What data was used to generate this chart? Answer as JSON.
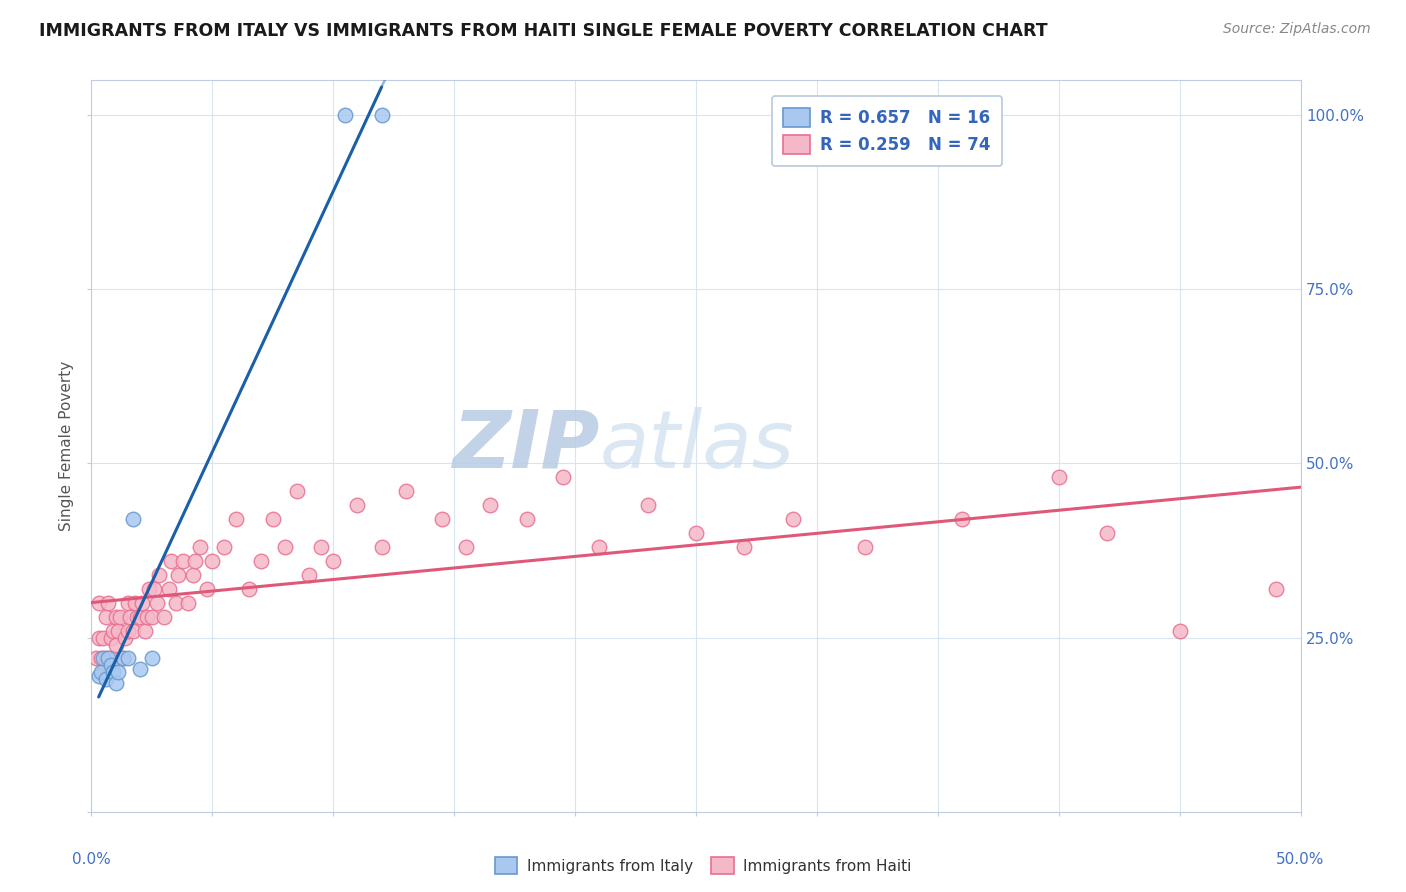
{
  "title": "IMMIGRANTS FROM ITALY VS IMMIGRANTS FROM HAITI SINGLE FEMALE POVERTY CORRELATION CHART",
  "source": "Source: ZipAtlas.com",
  "ylabel": "Single Female Poverty",
  "legend_italy_r": "R = 0.657",
  "legend_italy_n": "N = 16",
  "legend_haiti_r": "R = 0.259",
  "legend_haiti_n": "N = 74",
  "watermark_zip": "ZIP",
  "watermark_atlas": "atlas",
  "italy_color": "#a8c8f0",
  "italy_edge": "#6699cc",
  "haiti_color": "#f5b8c8",
  "haiti_edge": "#e87090",
  "italy_line_color": "#1a5fa8",
  "haiti_line_color": "#e05878",
  "background_color": "#ffffff",
  "grid_color": "#d8e4f0",
  "xlim": [
    0.0,
    0.5
  ],
  "ylim": [
    0.0,
    1.05
  ],
  "italy_x": [
    0.003,
    0.004,
    0.005,
    0.006,
    0.007,
    0.008,
    0.009,
    0.01,
    0.011,
    0.013,
    0.015,
    0.017,
    0.02,
    0.025,
    0.105,
    0.12
  ],
  "italy_y": [
    0.195,
    0.2,
    0.22,
    0.19,
    0.22,
    0.21,
    0.2,
    0.185,
    0.2,
    0.22,
    0.22,
    0.42,
    0.205,
    0.22,
    1.0,
    1.0
  ],
  "haiti_x": [
    0.002,
    0.003,
    0.003,
    0.004,
    0.005,
    0.005,
    0.006,
    0.006,
    0.007,
    0.008,
    0.008,
    0.009,
    0.01,
    0.01,
    0.011,
    0.012,
    0.013,
    0.014,
    0.015,
    0.015,
    0.016,
    0.017,
    0.018,
    0.019,
    0.02,
    0.021,
    0.022,
    0.023,
    0.024,
    0.025,
    0.026,
    0.027,
    0.028,
    0.03,
    0.032,
    0.033,
    0.035,
    0.036,
    0.038,
    0.04,
    0.042,
    0.043,
    0.045,
    0.048,
    0.05,
    0.055,
    0.06,
    0.065,
    0.07,
    0.075,
    0.08,
    0.085,
    0.09,
    0.095,
    0.1,
    0.11,
    0.12,
    0.13,
    0.145,
    0.155,
    0.165,
    0.18,
    0.195,
    0.21,
    0.23,
    0.25,
    0.27,
    0.29,
    0.32,
    0.36,
    0.4,
    0.42,
    0.45,
    0.49
  ],
  "haiti_y": [
    0.22,
    0.25,
    0.3,
    0.22,
    0.25,
    0.2,
    0.28,
    0.22,
    0.3,
    0.25,
    0.22,
    0.26,
    0.28,
    0.24,
    0.26,
    0.28,
    0.22,
    0.25,
    0.3,
    0.26,
    0.28,
    0.26,
    0.3,
    0.28,
    0.28,
    0.3,
    0.26,
    0.28,
    0.32,
    0.28,
    0.32,
    0.3,
    0.34,
    0.28,
    0.32,
    0.36,
    0.3,
    0.34,
    0.36,
    0.3,
    0.34,
    0.36,
    0.38,
    0.32,
    0.36,
    0.38,
    0.42,
    0.32,
    0.36,
    0.42,
    0.38,
    0.46,
    0.34,
    0.38,
    0.36,
    0.44,
    0.38,
    0.46,
    0.42,
    0.38,
    0.44,
    0.42,
    0.48,
    0.38,
    0.44,
    0.4,
    0.38,
    0.42,
    0.38,
    0.42,
    0.48,
    0.4,
    0.26,
    0.32
  ],
  "italy_line_x": [
    0.0,
    0.185
  ],
  "haiti_line_x_start": 0.0,
  "haiti_line_x_end": 0.5
}
